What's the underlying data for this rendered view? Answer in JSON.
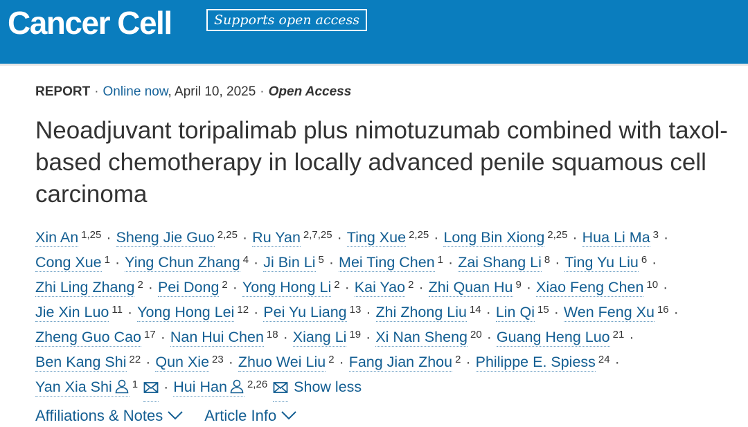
{
  "header": {
    "logo": "Cancer Cell",
    "badge": "Supports open access",
    "brand_color": "#0a7dbe"
  },
  "meta": {
    "type": "REPORT",
    "online": "Online now",
    "date": ", April 10, 2025",
    "access": "Open Access"
  },
  "title": "Neoadjuvant toripalimab plus nimotuzumab combined with taxol-based chemotherapy in locally advanced penile squamous cell carcinoma",
  "author_lines": [
    [
      {
        "name": "Xin An",
        "aff": "1,25"
      },
      {
        "name": "Sheng Jie Guo",
        "aff": "2,25"
      },
      {
        "name": "Ru Yan",
        "aff": "2,7,25"
      },
      {
        "name": "Ting Xue",
        "aff": "2,25"
      },
      {
        "name": "Long Bin Xiong",
        "aff": "2,25"
      },
      {
        "name": "Hua Li Ma",
        "aff": "3"
      }
    ],
    [
      {
        "name": "Cong Xue",
        "aff": "1"
      },
      {
        "name": "Ying Chun Zhang",
        "aff": "4"
      },
      {
        "name": "Ji Bin Li",
        "aff": "5"
      },
      {
        "name": "Mei Ting Chen",
        "aff": "1"
      },
      {
        "name": "Zai Shang Li",
        "aff": "8"
      },
      {
        "name": "Ting Yu Liu",
        "aff": "6"
      }
    ],
    [
      {
        "name": "Zhi Ling Zhang",
        "aff": "2"
      },
      {
        "name": "Pei Dong",
        "aff": "2"
      },
      {
        "name": "Yong Hong Li",
        "aff": "2"
      },
      {
        "name": "Kai Yao",
        "aff": "2"
      },
      {
        "name": "Zhi Quan Hu",
        "aff": "9"
      },
      {
        "name": "Xiao Feng Chen",
        "aff": "10"
      }
    ],
    [
      {
        "name": "Jie Xin Luo",
        "aff": "11"
      },
      {
        "name": "Yong Hong Lei",
        "aff": "12"
      },
      {
        "name": "Pei Yu Liang",
        "aff": "13"
      },
      {
        "name": "Zhi Zhong Liu",
        "aff": "14"
      },
      {
        "name": "Lin Qi",
        "aff": "15"
      },
      {
        "name": "Wen Feng Xu",
        "aff": "16"
      }
    ],
    [
      {
        "name": "Zheng Guo Cao",
        "aff": "17"
      },
      {
        "name": "Nan Hui Chen",
        "aff": "18"
      },
      {
        "name": "Xiang Li",
        "aff": "19"
      },
      {
        "name": "Xi Nan Sheng",
        "aff": "20"
      },
      {
        "name": "Guang Heng Luo",
        "aff": "21"
      }
    ],
    [
      {
        "name": "Ben Kang Shi",
        "aff": "22"
      },
      {
        "name": "Qun Xie",
        "aff": "23"
      },
      {
        "name": "Zhuo Wei Liu",
        "aff": "2"
      },
      {
        "name": "Fang Jian Zhou",
        "aff": "2"
      },
      {
        "name": "Philippe E. Spiess",
        "aff": "24"
      }
    ]
  ],
  "corresponding": [
    {
      "name": "Yan Xia Shi",
      "aff": "1",
      "icon": "person-icon",
      "mail_icon": "envelope-icon"
    },
    {
      "name": "Hui Han",
      "aff": "2,26",
      "icon": "person-icon",
      "mail_icon": "envelope-icon"
    }
  ],
  "show_less": "Show less",
  "separator": "·",
  "toggles": [
    {
      "label": "Affiliations & Notes",
      "icon": "chevron-down-icon"
    },
    {
      "label": "Article Info",
      "icon": "chevron-down-icon"
    }
  ],
  "link_color": "#135e92"
}
